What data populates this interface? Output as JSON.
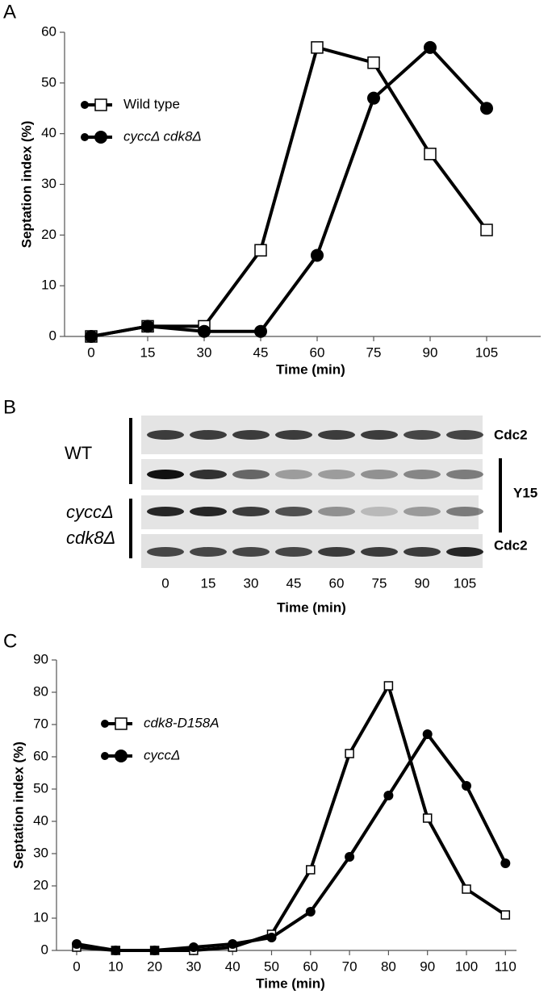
{
  "panels": [
    "A",
    "B",
    "C"
  ],
  "chart_data": [
    {
      "type": "line",
      "x_label": "Time (min)",
      "y_label": "Septation index (%)",
      "categories": [
        "0",
        "15",
        "30",
        "45",
        "60",
        "75",
        "90",
        "105"
      ],
      "ylim": [
        0,
        60
      ],
      "yticks": [
        0,
        10,
        20,
        30,
        40,
        50,
        60
      ],
      "series": [
        {
          "name": "Wild type",
          "color": "#000000",
          "marker": "square",
          "values": [
            0,
            2,
            2,
            17,
            57,
            54,
            36,
            21
          ]
        },
        {
          "name": "cyccΔ cdk8Δ",
          "color": "#000000",
          "marker": "circle",
          "values": [
            0,
            2,
            1,
            1,
            16,
            47,
            57,
            45
          ]
        }
      ]
    },
    {
      "type": "line",
      "x_label": "Time (min)",
      "y_label": "Septation index (%)",
      "categories": [
        "0",
        "10",
        "20",
        "30",
        "40",
        "50",
        "60",
        "70",
        "80",
        "90",
        "100",
        "110"
      ],
      "ylim": [
        0,
        90
      ],
      "yticks": [
        0,
        10,
        20,
        30,
        40,
        50,
        60,
        70,
        80,
        90
      ],
      "series": [
        {
          "name": "cdk8-D158A",
          "color": "#000000",
          "marker": "square",
          "values": [
            1,
            0,
            0,
            0,
            1,
            5,
            25,
            61,
            82,
            41,
            19,
            11
          ]
        },
        {
          "name": "cyccΔ",
          "color": "#000000",
          "marker": "circle",
          "values": [
            2,
            0,
            0,
            1,
            2,
            4,
            12,
            29,
            48,
            67,
            51,
            27
          ]
        }
      ]
    }
  ],
  "blot": {
    "strain_1": "WT",
    "strain_2_line_1": "cyccΔ",
    "strain_2_line_2": "cdk8Δ",
    "row_labels": [
      "Cdc2",
      "Y15",
      "Cdc2"
    ],
    "lanes": [
      "0",
      "15",
      "30",
      "45",
      "60",
      "75",
      "90",
      "105"
    ],
    "x_label": "Time (min)"
  }
}
